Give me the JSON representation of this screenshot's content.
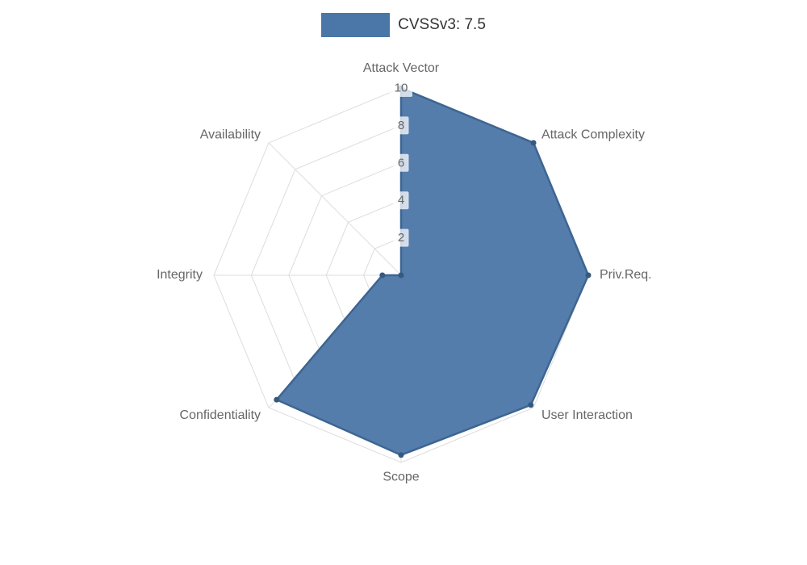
{
  "legend": {
    "label": "CVSSv3: 7.5"
  },
  "colors": {
    "series_fill": "#4b76a8",
    "series_stroke": "#3e6591",
    "point": "#35597f",
    "grid": "#dddddd",
    "axis_label": "#666666",
    "tick_label": "#666666",
    "tick_backdrop": "rgba(255,255,255,0.75)",
    "legend_text": "#333333",
    "background": "#ffffff"
  },
  "chart_data": {
    "type": "radar",
    "title": "CVSSv3: 7.5",
    "categories": [
      "Attack Vector",
      "Attack Complexity",
      "Priv.Req.",
      "User Interaction",
      "Scope",
      "Confidentiality",
      "Integrity",
      "Availability"
    ],
    "series": [
      {
        "name": "CVSSv3: 7.5",
        "values": [
          10,
          10,
          10,
          9.8,
          9.6,
          9.4,
          1,
          0
        ]
      }
    ],
    "ticks": [
      2,
      4,
      6,
      8,
      10
    ],
    "rmin": 0,
    "rmax": 10,
    "start_angle_deg": 90,
    "direction": "clockwise",
    "grid": true,
    "legend_position": "top"
  }
}
